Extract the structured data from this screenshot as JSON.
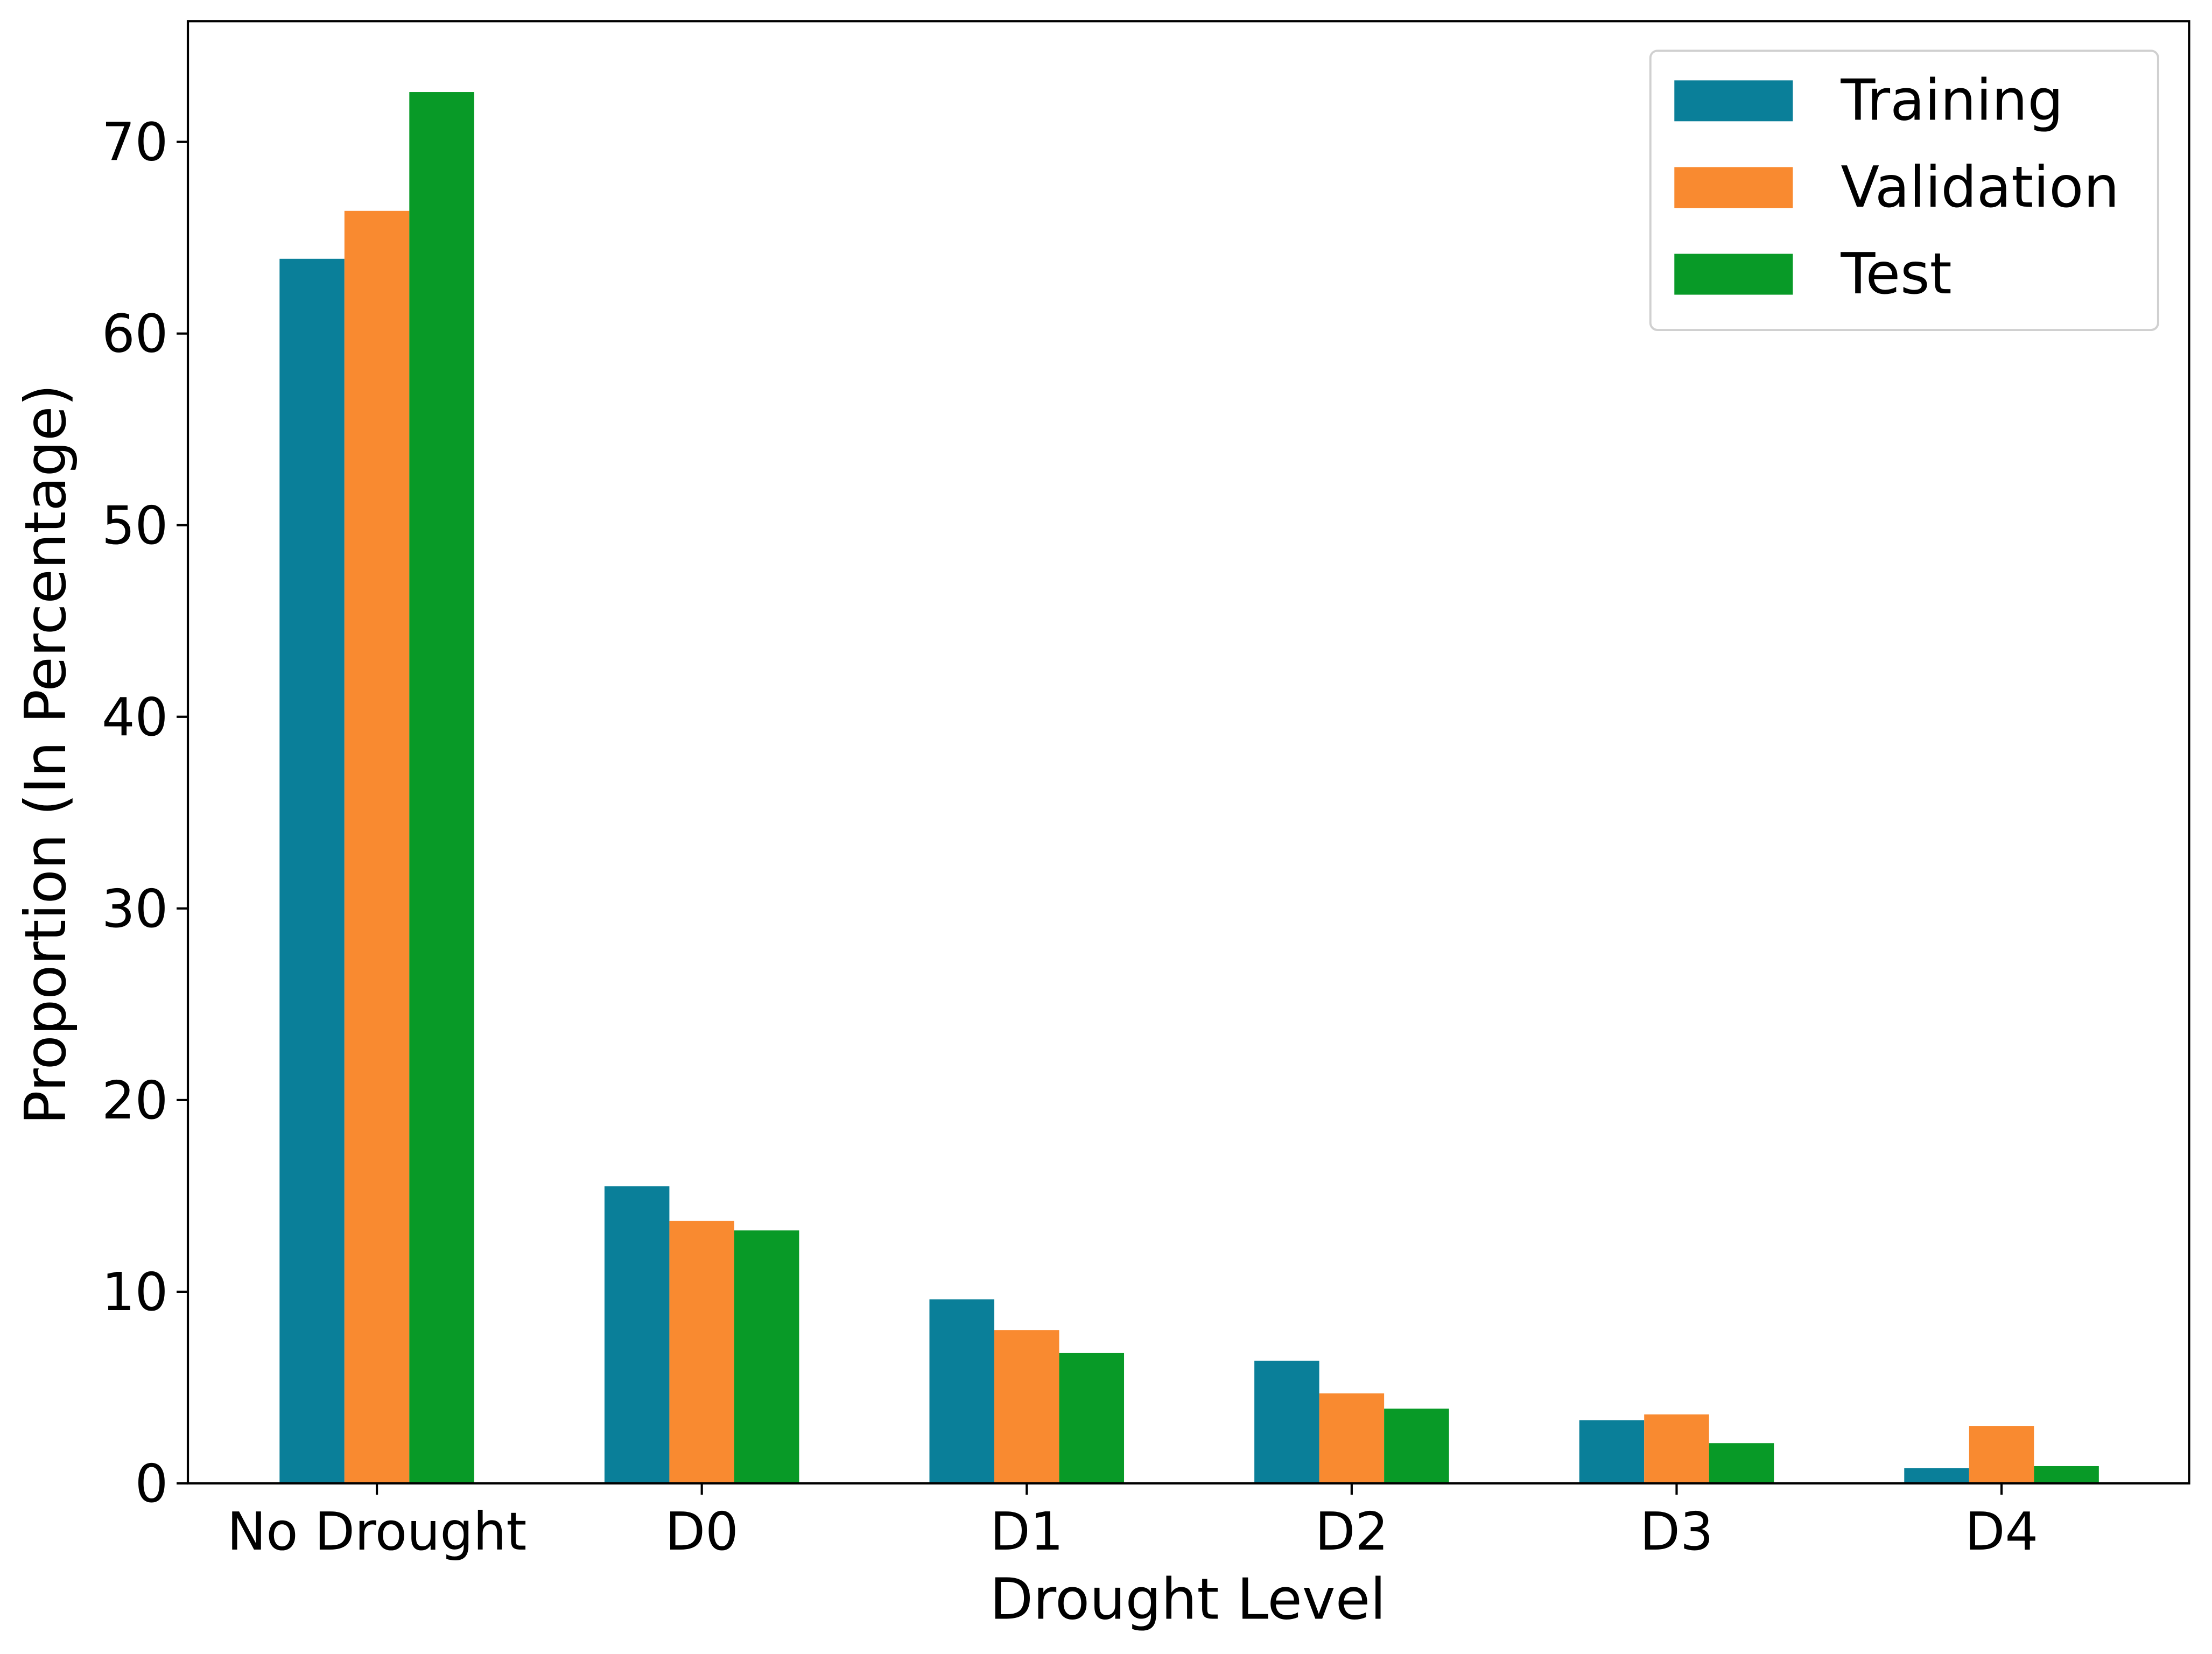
{
  "chart_data": {
    "type": "bar",
    "title": "",
    "xlabel": "Drought Level",
    "ylabel": "Proportion (In Percentage)",
    "categories": [
      "No Drought",
      "D0",
      "D1",
      "D2",
      "D3",
      "D4"
    ],
    "series": [
      {
        "name": "Training",
        "color": "#0a7f99",
        "values": [
          63.9,
          15.5,
          9.6,
          6.4,
          3.3,
          0.8
        ]
      },
      {
        "name": "Validation",
        "color": "#f98a30",
        "values": [
          66.4,
          13.7,
          8.0,
          4.7,
          3.6,
          3.0
        ]
      },
      {
        "name": "Test",
        "color": "#089a27",
        "values": [
          72.6,
          13.2,
          6.8,
          3.9,
          2.1,
          0.9
        ]
      }
    ],
    "ylim": [
      0,
      76.3
    ],
    "yticks": [
      0,
      10,
      20,
      30,
      40,
      50,
      60,
      70
    ],
    "grid": false,
    "legend_position": "top-right"
  }
}
